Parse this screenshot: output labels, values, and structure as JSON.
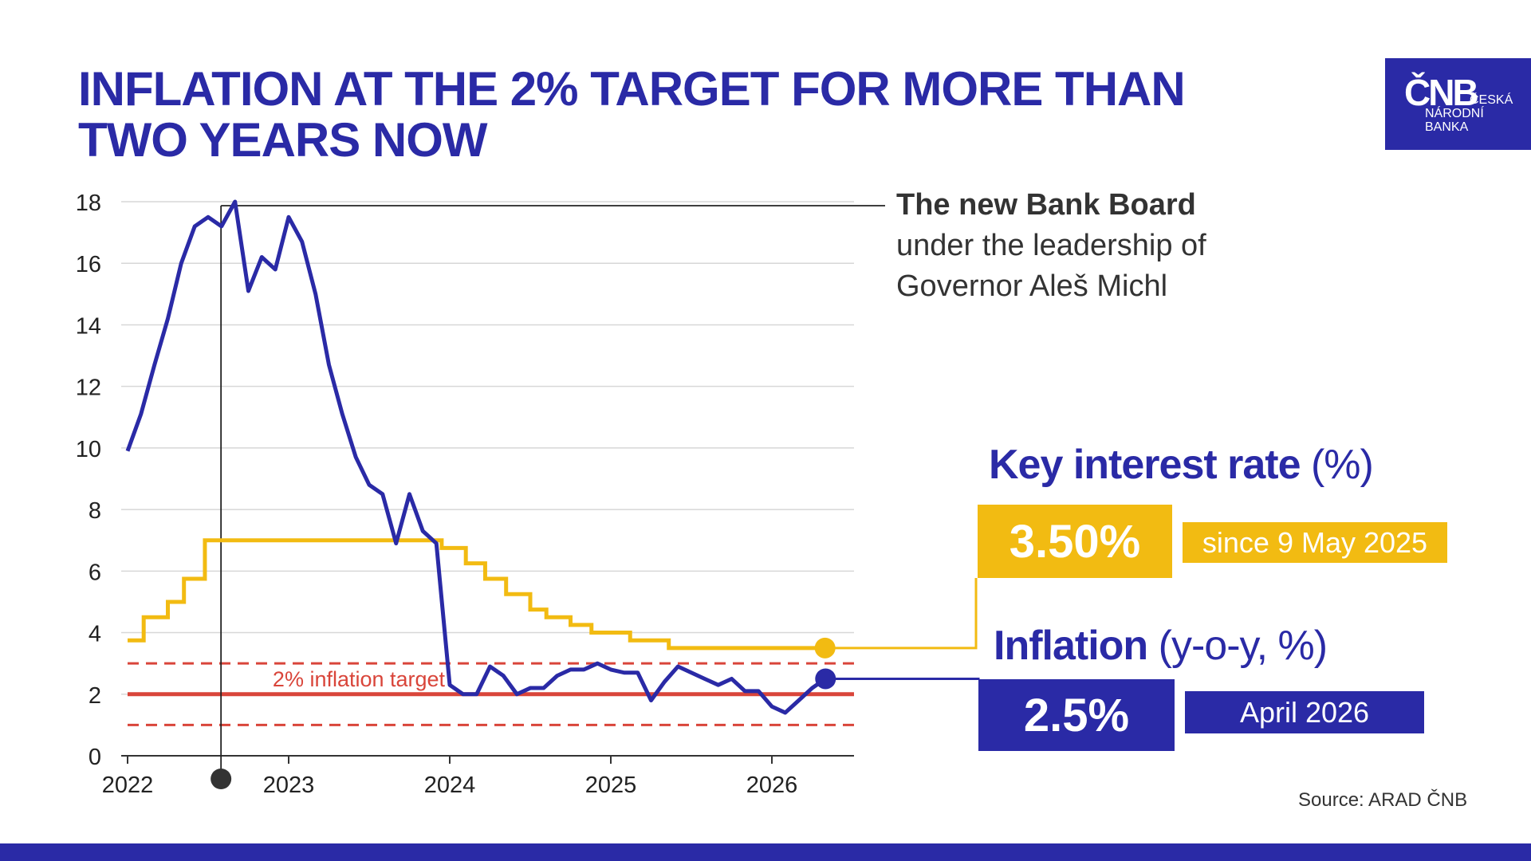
{
  "title": "INFLATION AT THE 2% TARGET FOR MORE THAN TWO YEARS NOW",
  "logo": {
    "mark": "ČNB",
    "line1": "ČESKÁ",
    "line2": "NÁRODNÍ",
    "line3": "BANKA"
  },
  "annotation": {
    "bold": "The new Bank Board",
    "line2": "under the leadership of",
    "line3": "Governor Aleš Michl"
  },
  "key_rate": {
    "heading_bold": "Key interest rate",
    "heading_unit": " (%)",
    "value": "3.50%",
    "since": "since 9 May 2025"
  },
  "inflation": {
    "heading_bold": "Inflation",
    "heading_unit": " (y-o-y, %)",
    "value": "2.5%",
    "since": "April 2026"
  },
  "source": "Source: ARAD ČNB",
  "colors": {
    "inflation": "#2a2aa6",
    "key_rate": "#f2bb12",
    "target": "#d9453a",
    "grid": "#d7d7d7",
    "marker": "#333333"
  },
  "chart_data": {
    "type": "line",
    "ylim": [
      0,
      18
    ],
    "yticks": [
      0,
      2,
      4,
      6,
      8,
      10,
      12,
      14,
      16,
      18
    ],
    "xticks": [
      2022,
      2023,
      2024,
      2025,
      2026
    ],
    "xlim": [
      2022.0,
      2026.5
    ],
    "target_label": "2% inflation target",
    "target": {
      "value": 2,
      "band": [
        1,
        3
      ]
    },
    "board_start": 2022.58,
    "series": [
      {
        "key": "inflation",
        "x": [
          2022.0,
          2022.083,
          2022.167,
          2022.25,
          2022.333,
          2022.417,
          2022.5,
          2022.583,
          2022.667,
          2022.75,
          2022.833,
          2022.917,
          2023.0,
          2023.083,
          2023.167,
          2023.25,
          2023.333,
          2023.417,
          2023.5,
          2023.583,
          2023.667,
          2023.75,
          2023.833,
          2023.917,
          2024.0,
          2024.083,
          2024.167,
          2024.25,
          2024.333,
          2024.417,
          2024.5,
          2024.583,
          2024.667,
          2024.75,
          2024.833,
          2024.917,
          2025.0,
          2025.083,
          2025.167,
          2025.25,
          2025.333,
          2025.417,
          2025.5,
          2025.583,
          2025.667,
          2025.75,
          2025.833,
          2025.917,
          2026.0,
          2026.083,
          2026.167,
          2026.25,
          2026.333
        ],
        "values": [
          9.9,
          11.1,
          12.7,
          14.2,
          16.0,
          17.2,
          17.5,
          17.2,
          18.0,
          15.1,
          16.2,
          15.8,
          17.5,
          16.7,
          15.0,
          12.7,
          11.1,
          9.7,
          8.8,
          8.5,
          6.9,
          8.5,
          7.3,
          6.9,
          2.3,
          2.0,
          2.0,
          2.9,
          2.6,
          2.0,
          2.2,
          2.2,
          2.6,
          2.8,
          2.8,
          3.0,
          2.8,
          2.7,
          2.7,
          1.8,
          2.4,
          2.9,
          2.7,
          2.5,
          2.3,
          2.5,
          2.1,
          2.1,
          1.6,
          1.4,
          1.8,
          2.2,
          2.5
        ]
      },
      {
        "key": "key_rate",
        "steps": [
          [
            2022.0,
            3.75
          ],
          [
            2022.1,
            4.5
          ],
          [
            2022.25,
            5.0
          ],
          [
            2022.35,
            5.75
          ],
          [
            2022.48,
            7.0
          ],
          [
            2023.95,
            6.75
          ],
          [
            2024.1,
            6.25
          ],
          [
            2024.22,
            5.75
          ],
          [
            2024.35,
            5.25
          ],
          [
            2024.5,
            4.75
          ],
          [
            2024.6,
            4.5
          ],
          [
            2024.75,
            4.25
          ],
          [
            2024.88,
            4.0
          ],
          [
            2025.12,
            3.75
          ],
          [
            2025.36,
            3.5
          ],
          [
            2026.33,
            3.5
          ]
        ]
      }
    ]
  }
}
